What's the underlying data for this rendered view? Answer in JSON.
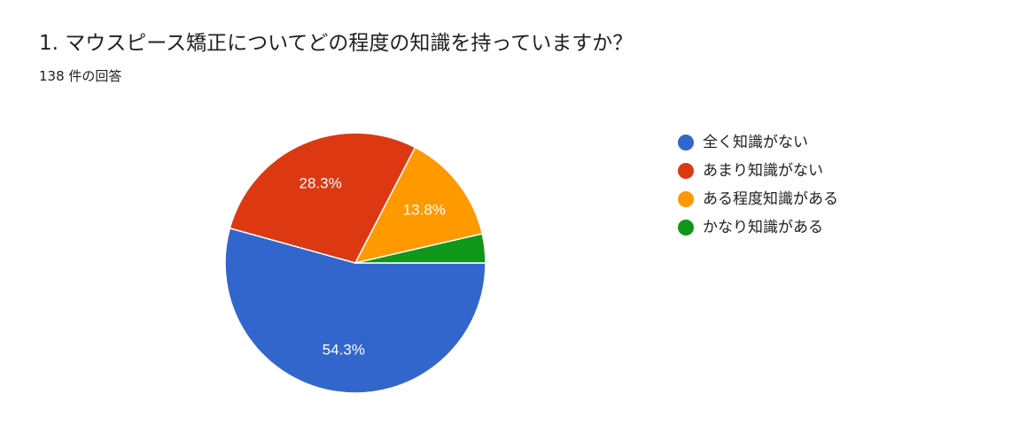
{
  "question": {
    "title": "1. マウスピース矯正についてどの程度の知識を持っていますか？",
    "response_count": "138 件の回答"
  },
  "chart_data": {
    "type": "pie",
    "title": "1. マウスピース矯正についてどの程度の知識を持っていますか？",
    "total_responses": 138,
    "categories": [
      "全く知識がない",
      "あまり知識がない",
      "ある程度知識がある",
      "かなり知識がある"
    ],
    "values": [
      54.3,
      28.3,
      13.8,
      3.6
    ],
    "data_labels": [
      "54.3%",
      "28.3%",
      "13.8%",
      ""
    ],
    "colors": [
      "#3366cc",
      "#dc3912",
      "#ff9900",
      "#109618"
    ],
    "start": "3 o'clock, clockwise",
    "legend_position": "right"
  }
}
